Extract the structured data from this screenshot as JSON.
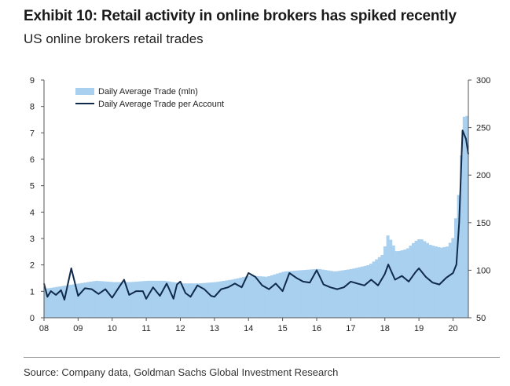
{
  "header": {
    "title": "Exhibit 10: Retail activity in online brokers has spiked recently",
    "subtitle": "US online brokers retail trades"
  },
  "footer": {
    "source": "Source: Company data, Goldman Sachs Global Investment Research"
  },
  "colors": {
    "area": "#a9d0ee",
    "line": "#102a4c",
    "axis": "#555555"
  },
  "chart_data": {
    "type": "bar+line",
    "title": "US online brokers retail trades",
    "x_tick_labels": [
      "08",
      "09",
      "10",
      "11",
      "12",
      "13",
      "14",
      "15",
      "16",
      "17",
      "18",
      "19",
      "20"
    ],
    "x_range": [
      2008.0,
      2020.45
    ],
    "y_left": {
      "range": [
        0,
        9
      ],
      "ticks": [
        "0",
        "1",
        "2",
        "3",
        "4",
        "5",
        "6",
        "7",
        "8",
        "9"
      ]
    },
    "y_right": {
      "range": [
        50,
        300
      ],
      "ticks": [
        "50",
        "100",
        "150",
        "200",
        "250",
        "300"
      ]
    },
    "legend": [
      "Daily Average Trade (mln)",
      "Daily Average Trade per Account"
    ],
    "series": [
      {
        "name": "Daily Average Trade (mln)",
        "axis": "left",
        "kind": "bar",
        "points": [
          [
            2008.0,
            1.1
          ],
          [
            2008.5,
            1.2
          ],
          [
            2009.0,
            1.3
          ],
          [
            2009.5,
            1.4
          ],
          [
            2010.0,
            1.35
          ],
          [
            2010.5,
            1.35
          ],
          [
            2011.0,
            1.4
          ],
          [
            2011.5,
            1.4
          ],
          [
            2012.0,
            1.3
          ],
          [
            2012.5,
            1.3
          ],
          [
            2013.0,
            1.35
          ],
          [
            2013.5,
            1.45
          ],
          [
            2014.0,
            1.6
          ],
          [
            2014.5,
            1.55
          ],
          [
            2015.0,
            1.75
          ],
          [
            2015.5,
            1.8
          ],
          [
            2016.0,
            1.85
          ],
          [
            2016.5,
            1.75
          ],
          [
            2017.0,
            1.85
          ],
          [
            2017.5,
            2.0
          ],
          [
            2017.9,
            2.4
          ],
          [
            2018.05,
            3.15
          ],
          [
            2018.3,
            2.5
          ],
          [
            2018.6,
            2.6
          ],
          [
            2018.85,
            2.9
          ],
          [
            2019.0,
            3.0
          ],
          [
            2019.3,
            2.75
          ],
          [
            2019.6,
            2.65
          ],
          [
            2019.8,
            2.7
          ],
          [
            2019.95,
            3.0
          ],
          [
            2020.05,
            3.9
          ],
          [
            2020.15,
            5.0
          ],
          [
            2020.23,
            6.8
          ],
          [
            2020.3,
            7.85
          ],
          [
            2020.38,
            7.6
          ],
          [
            2020.45,
            6.9
          ]
        ]
      },
      {
        "name": "Daily Average Trade per Account",
        "axis": "right",
        "kind": "line",
        "points": [
          [
            2008.0,
            86
          ],
          [
            2008.1,
            72
          ],
          [
            2008.2,
            78
          ],
          [
            2008.35,
            74
          ],
          [
            2008.5,
            79
          ],
          [
            2008.6,
            69
          ],
          [
            2008.8,
            102
          ],
          [
            2009.0,
            73
          ],
          [
            2009.2,
            81
          ],
          [
            2009.4,
            80
          ],
          [
            2009.6,
            75
          ],
          [
            2009.8,
            80
          ],
          [
            2010.0,
            71
          ],
          [
            2010.2,
            82
          ],
          [
            2010.35,
            90
          ],
          [
            2010.5,
            74
          ],
          [
            2010.7,
            78
          ],
          [
            2010.9,
            78
          ],
          [
            2011.0,
            70
          ],
          [
            2011.2,
            82
          ],
          [
            2011.4,
            73
          ],
          [
            2011.6,
            86
          ],
          [
            2011.8,
            70
          ],
          [
            2011.9,
            85
          ],
          [
            2012.0,
            88
          ],
          [
            2012.15,
            76
          ],
          [
            2012.3,
            72
          ],
          [
            2012.5,
            84
          ],
          [
            2012.7,
            80
          ],
          [
            2012.9,
            73
          ],
          [
            2013.0,
            72
          ],
          [
            2013.2,
            80
          ],
          [
            2013.4,
            82
          ],
          [
            2013.6,
            86
          ],
          [
            2013.8,
            82
          ],
          [
            2014.0,
            97
          ],
          [
            2014.2,
            93
          ],
          [
            2014.4,
            84
          ],
          [
            2014.6,
            80
          ],
          [
            2014.8,
            86
          ],
          [
            2015.0,
            78
          ],
          [
            2015.2,
            97
          ],
          [
            2015.4,
            92
          ],
          [
            2015.6,
            88
          ],
          [
            2015.8,
            87
          ],
          [
            2016.0,
            100
          ],
          [
            2016.2,
            85
          ],
          [
            2016.4,
            82
          ],
          [
            2016.6,
            80
          ],
          [
            2016.8,
            82
          ],
          [
            2017.0,
            88
          ],
          [
            2017.2,
            86
          ],
          [
            2017.4,
            84
          ],
          [
            2017.6,
            90
          ],
          [
            2017.8,
            84
          ],
          [
            2018.0,
            96
          ],
          [
            2018.1,
            106
          ],
          [
            2018.3,
            90
          ],
          [
            2018.5,
            94
          ],
          [
            2018.7,
            88
          ],
          [
            2018.9,
            98
          ],
          [
            2019.0,
            102
          ],
          [
            2019.2,
            93
          ],
          [
            2019.4,
            87
          ],
          [
            2019.6,
            85
          ],
          [
            2019.8,
            92
          ],
          [
            2020.0,
            97
          ],
          [
            2020.1,
            106
          ],
          [
            2020.18,
            150
          ],
          [
            2020.28,
            247
          ],
          [
            2020.38,
            238
          ],
          [
            2020.45,
            222
          ]
        ]
      }
    ]
  }
}
